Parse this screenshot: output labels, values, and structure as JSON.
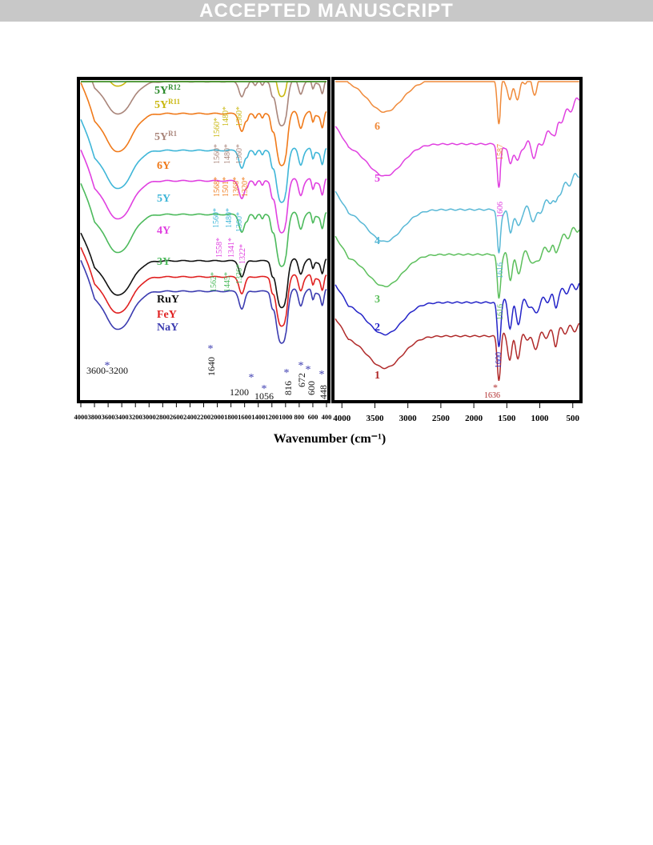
{
  "header": {
    "banner": "ACCEPTED MANUSCRIPT"
  },
  "chart_data": [
    {
      "type": "line",
      "panel": "left",
      "xlabel": "Wavenumber (cm⁻¹)",
      "xlim": [
        4000,
        400
      ],
      "x_reversed": true,
      "x_ticks": [
        4000,
        3800,
        3600,
        3400,
        3200,
        3000,
        2800,
        2600,
        2400,
        2200,
        2000,
        1800,
        1600,
        1400,
        1200,
        1000,
        800,
        600,
        400
      ],
      "series": [
        {
          "name": "NaY",
          "color": "#3b3bb0"
        },
        {
          "name": "FeY",
          "color": "#e02020"
        },
        {
          "name": "RuY",
          "color": "#111111"
        },
        {
          "name": "3Y",
          "color": "#4cba5c"
        },
        {
          "name": "4Y",
          "color": "#e040e0"
        },
        {
          "name": "5Y",
          "color": "#3fb6d8"
        },
        {
          "name": "6Y",
          "color": "#f07a1a"
        },
        {
          "name": "5Y",
          "sup": "R1",
          "color": "#a9857a"
        },
        {
          "name": "5Y",
          "sup": "R11",
          "color": "#c9b70e"
        },
        {
          "name": "5Y",
          "sup": "R12",
          "color": "#2a8a2a"
        }
      ],
      "annotations": [
        {
          "text": "3600-3200",
          "color": "#111111"
        },
        {
          "text": "1640",
          "color": "#111111"
        },
        {
          "text": "1200",
          "color": "#111111"
        },
        {
          "text": "1056",
          "color": "#111111"
        },
        {
          "text": "816",
          "color": "#111111"
        },
        {
          "text": "672",
          "color": "#111111"
        },
        {
          "text": "600",
          "color": "#111111"
        },
        {
          "text": "448",
          "color": "#111111"
        },
        {
          "text": "1562",
          "color": "#4cba5c"
        },
        {
          "text": "1445",
          "color": "#4cba5c"
        },
        {
          "text": "1336",
          "color": "#4cba5c"
        },
        {
          "text": "1558",
          "color": "#e040e0"
        },
        {
          "text": "1341",
          "color": "#e040e0"
        },
        {
          "text": "1322",
          "color": "#e040e0"
        },
        {
          "text": "1560",
          "color": "#3fb6d8"
        },
        {
          "text": "1480",
          "color": "#3fb6d8"
        },
        {
          "text": "1360",
          "color": "#3fb6d8"
        },
        {
          "text": "1568",
          "color": "#f07a1a"
        },
        {
          "text": "1501",
          "color": "#f07a1a"
        },
        {
          "text": "1368",
          "color": "#f07a1a"
        },
        {
          "text": "1320",
          "color": "#f07a1a"
        },
        {
          "text": "1560",
          "color": "#a9857a"
        },
        {
          "text": "1480",
          "color": "#a9857a"
        },
        {
          "text": "1360",
          "color": "#a9857a"
        },
        {
          "text": "1560",
          "color": "#c9b70e"
        },
        {
          "text": "1480",
          "color": "#c9b70e"
        },
        {
          "text": "1360",
          "color": "#c9b70e"
        }
      ]
    },
    {
      "type": "line",
      "panel": "right",
      "xlim": [
        4100,
        400
      ],
      "x_reversed": true,
      "x_ticks": [
        4000,
        3500,
        3000,
        2500,
        2000,
        1500,
        1000,
        500
      ],
      "series": [
        {
          "name": "1",
          "color": "#b02a2a"
        },
        {
          "name": "2",
          "color": "#2424c8"
        },
        {
          "name": "3",
          "color": "#5cbf5c"
        },
        {
          "name": "4",
          "color": "#58b8d6"
        },
        {
          "name": "5",
          "color": "#e040e0"
        },
        {
          "name": "6",
          "color": "#f08a3a"
        }
      ],
      "annotations": [
        {
          "text": "1636",
          "color": "#b02a2a"
        },
        {
          "text": "1600",
          "color": "#2424c8"
        },
        {
          "text": "1616",
          "color": "#5cbf5c"
        },
        {
          "text": "1616",
          "color": "#58b8d6"
        },
        {
          "text": "1606",
          "color": "#e040e0"
        },
        {
          "text": "1587",
          "color": "#f08a3a"
        }
      ]
    }
  ]
}
